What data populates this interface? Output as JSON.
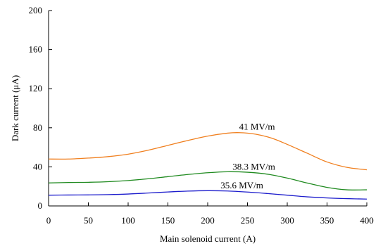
{
  "chart_data": {
    "type": "line",
    "title": "",
    "xlabel": "Main solenoid current (A)",
    "ylabel": "Dark current (μA)",
    "xlim": [
      0,
      400
    ],
    "ylim": [
      0,
      200
    ],
    "xticks": [
      0,
      50,
      100,
      150,
      200,
      250,
      300,
      350,
      400
    ],
    "yticks": [
      0,
      40,
      80,
      120,
      160,
      200
    ],
    "grid": false,
    "series": [
      {
        "name": "41 MV/m",
        "color": "#f07f1e",
        "x": [
          0,
          25,
          50,
          75,
          100,
          125,
          150,
          175,
          200,
          225,
          240,
          260,
          280,
          300,
          325,
          350,
          375,
          400
        ],
        "y": [
          48,
          48,
          49,
          50.5,
          53,
          57,
          62,
          67,
          71.5,
          74.5,
          75,
          73.5,
          69.5,
          63,
          54,
          45,
          39.5,
          37
        ]
      },
      {
        "name": "38.3 MV/m",
        "color": "#1f8a1f",
        "x": [
          0,
          25,
          50,
          75,
          100,
          125,
          150,
          175,
          200,
          225,
          250,
          275,
          300,
          325,
          350,
          375,
          400
        ],
        "y": [
          23.5,
          24,
          24.2,
          24.8,
          26,
          27.8,
          30,
          32.2,
          34,
          35,
          34.5,
          32.5,
          28.5,
          23.5,
          19,
          16.5,
          16.5
        ]
      },
      {
        "name": "35.6 MV/m",
        "color": "#1c1ccc",
        "x": [
          0,
          25,
          50,
          75,
          100,
          125,
          150,
          175,
          200,
          225,
          250,
          275,
          300,
          325,
          350,
          375,
          400
        ],
        "y": [
          11,
          11.2,
          11.3,
          11.6,
          12.2,
          13.2,
          14.3,
          15.2,
          15.6,
          15.3,
          14.2,
          12.7,
          11,
          9.3,
          8.2,
          7.5,
          7
        ]
      }
    ],
    "annotations": [
      {
        "text": "41 MV/m",
        "series": 0,
        "x": 262,
        "y": 78
      },
      {
        "text": "38.3 MV/m",
        "series": 1,
        "x": 258,
        "y": 37
      },
      {
        "text": "35.6 MV/m",
        "series": 2,
        "x": 243,
        "y": 18
      }
    ]
  }
}
